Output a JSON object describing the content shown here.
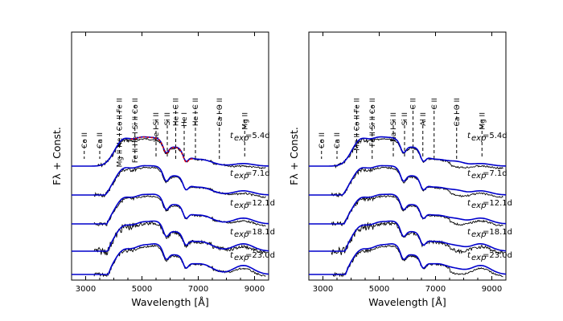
{
  "chart_data": [
    {
      "type": "line",
      "panel": "left",
      "xlabel": "Wavelength [Å]",
      "ylabel": "Fλ + Const.",
      "xlim": [
        2500,
        9500
      ],
      "xticks": [
        3000,
        5000,
        7000,
        9000
      ],
      "epochs": [
        {
          "label": "t",
          "sub": "exp",
          "value": "=5.4d"
        },
        {
          "label": "t",
          "sub": "exp",
          "value": "=7.1d"
        },
        {
          "label": "t",
          "sub": "exp",
          "value": "=12.1d"
        },
        {
          "label": "t",
          "sub": "exp",
          "value": "=18.1d"
        },
        {
          "label": "t",
          "sub": "exp",
          "value": "=23.0d"
        }
      ],
      "line_ids": [
        {
          "text": "Co II",
          "wavelength": 2950
        },
        {
          "text": "Ca II",
          "wavelength": 3500
        },
        {
          "text": "Mg II He I Co II Fe II",
          "wavelength": 4200
        },
        {
          "text": "Fe II He I Si II Co II",
          "wavelength": 4750
        },
        {
          "text": "He I Si II",
          "wavelength": 5500
        },
        {
          "text": "Si II",
          "wavelength": 5900
        },
        {
          "text": "He I C II",
          "wavelength": 6200
        },
        {
          "text": "He I",
          "wavelength": 6500
        },
        {
          "text": "He I C II",
          "wavelength": 6900
        },
        {
          "text": "Ca I O II",
          "wavelength": 7750
        },
        {
          "text": "Mg II",
          "wavelength": 8650
        }
      ],
      "series": [
        {
          "name": "observed",
          "color": "#000000"
        },
        {
          "name": "model",
          "color": "#0000cc"
        },
        {
          "name": "model (alt, 5.4d)",
          "color": "#dd0000"
        }
      ]
    },
    {
      "type": "line",
      "panel": "right",
      "xlabel": "Wavelength [Å]",
      "ylabel": "Fλ + Const.",
      "xlim": [
        2500,
        9500
      ],
      "xticks": [
        3000,
        5000,
        7000,
        9000
      ],
      "epochs": [
        {
          "label": "t",
          "sub": "exp",
          "value": "=5.4d"
        },
        {
          "label": "t",
          "sub": "exp",
          "value": "=7.1d"
        },
        {
          "label": "t",
          "sub": "exp",
          "value": "=12.1d"
        },
        {
          "label": "t",
          "sub": "exp",
          "value": "=18.1d"
        },
        {
          "label": "t",
          "sub": "exp",
          "value": "=23.0d"
        }
      ],
      "line_ids": [
        {
          "text": "Co II",
          "wavelength": 2950
        },
        {
          "text": "Ca II",
          "wavelength": 3500
        },
        {
          "text": "Mg II Co II Fe II",
          "wavelength": 4200
        },
        {
          "text": "Fe II Si II Co II",
          "wavelength": 4750
        },
        {
          "text": "Na I Si II",
          "wavelength": 5500
        },
        {
          "text": "Si II",
          "wavelength": 5900
        },
        {
          "text": "C II",
          "wavelength": 6200
        },
        {
          "text": "Al II",
          "wavelength": 6550
        },
        {
          "text": "C II",
          "wavelength": 6950
        },
        {
          "text": "Ca I O II",
          "wavelength": 7750
        },
        {
          "text": "Mg II",
          "wavelength": 8650
        }
      ],
      "series": [
        {
          "name": "observed",
          "color": "#000000"
        },
        {
          "name": "model",
          "color": "#0000cc"
        }
      ]
    }
  ]
}
